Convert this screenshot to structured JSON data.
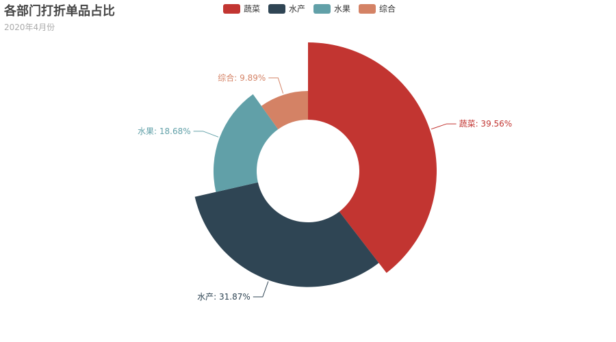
{
  "chart_data": {
    "type": "pie",
    "variant": "rose-donut",
    "title": "各部门打折单品占比",
    "subtitle": "2020年4月份",
    "legend_position": "top-center",
    "series": [
      {
        "name": "蔬菜",
        "value": 39.56,
        "label": "蔬菜: 39.56%",
        "color": "#c23531"
      },
      {
        "name": "水产",
        "value": 31.87,
        "label": "水产: 31.87%",
        "color": "#2f4554"
      },
      {
        "name": "水果",
        "value": 18.68,
        "label": "水果: 18.68%",
        "color": "#61a0a8"
      },
      {
        "name": "综合",
        "value": 9.89,
        "label": "综合: 9.89%",
        "color": "#d48265"
      }
    ]
  }
}
